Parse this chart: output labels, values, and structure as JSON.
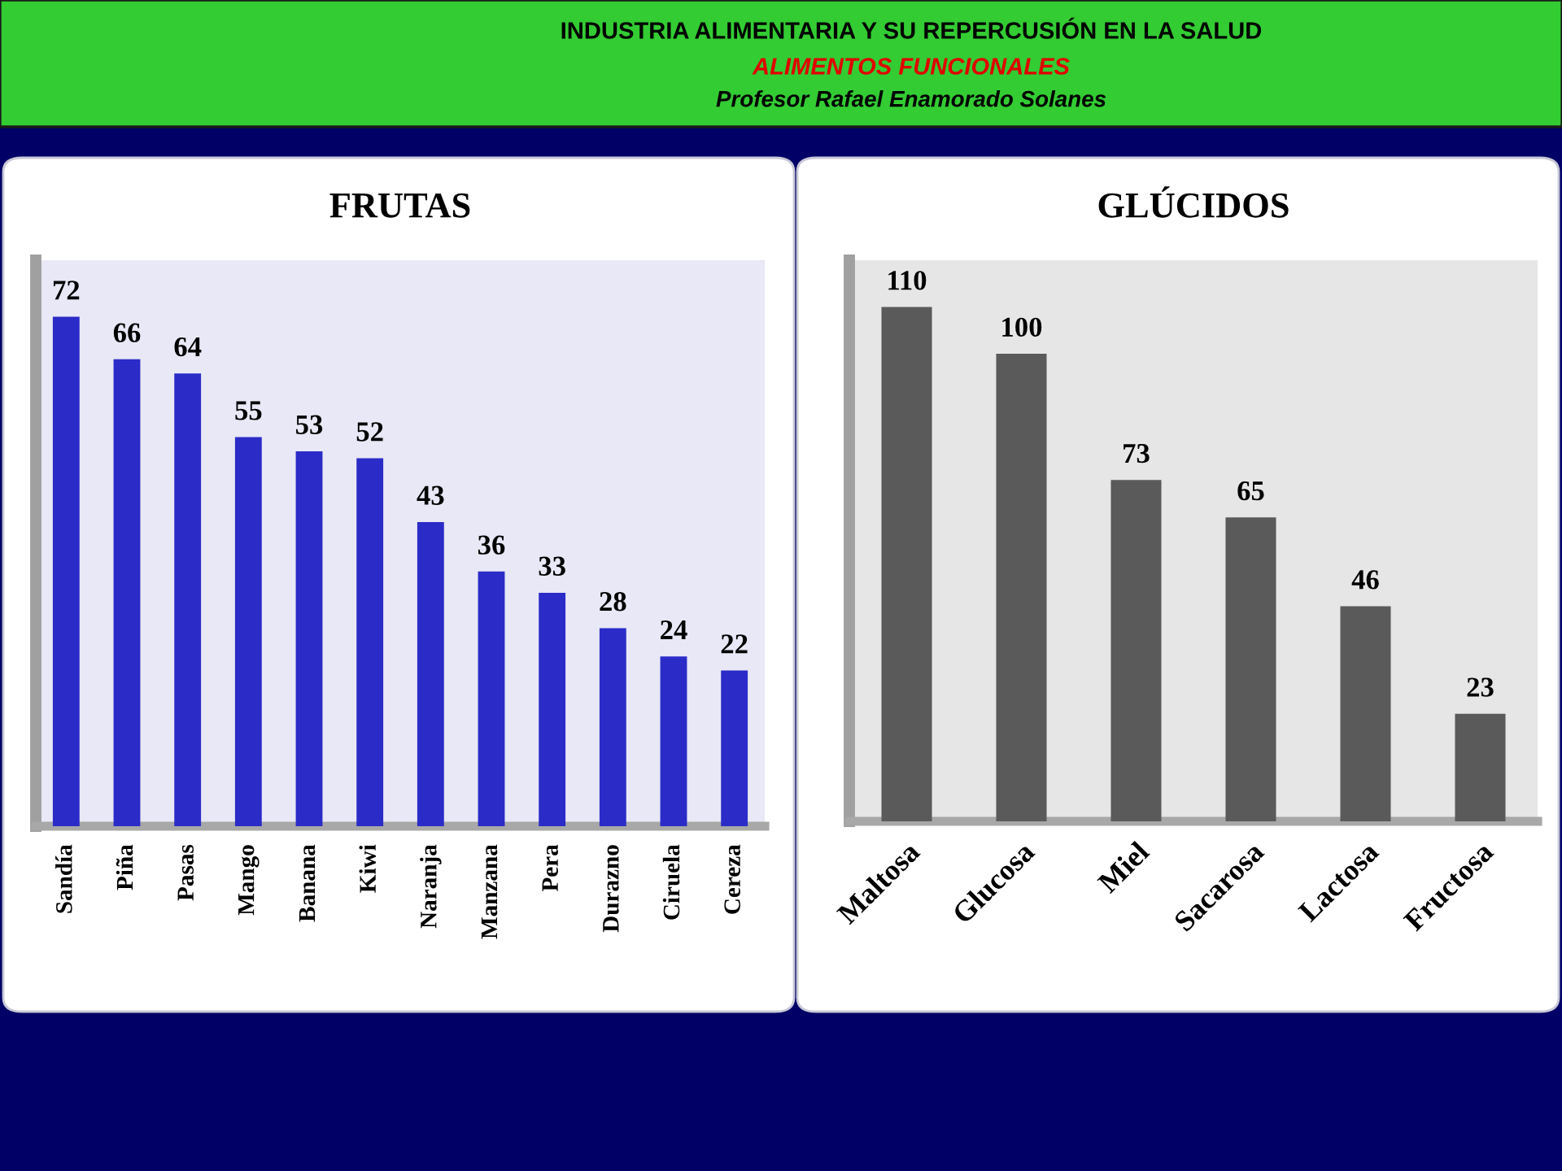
{
  "chart_data": [
    {
      "type": "other",
      "title": "INDUSTRIA ALIMENTARIA Y SU REPERCUSIÓN EN LA SALUD",
      "subtitle": "ALIMENTOS FUNCIONALES",
      "annotations": [
        "Profesor Rafael Enamorado Solanes"
      ]
    },
    {
      "type": "bar",
      "title": "FRUTAS",
      "categories": [
        "Sandía",
        "Piña",
        "Pasas",
        "Mango",
        "Banana",
        "Kiwi",
        "Naranja",
        "Manzana",
        "Pera",
        "Durazno",
        "Ciruela",
        "Cereza"
      ],
      "values": [
        72,
        66,
        64,
        55,
        53,
        52,
        43,
        36,
        33,
        28,
        24,
        22
      ],
      "color": "#2b2bc8",
      "ylim": [
        0,
        80
      ],
      "data_labels": true,
      "tick_labels": "x"
    },
    {
      "type": "bar",
      "title": "GLÚCIDOS",
      "categories": [
        "Maltosa",
        "Glucosa",
        "Miel",
        "Sacarosa",
        "Lactosa",
        "Fructosa"
      ],
      "values": [
        110,
        100,
        73,
        65,
        46,
        23
      ],
      "color": "#5a5a5a",
      "ylim": [
        0,
        120
      ],
      "data_labels": true,
      "tick_labels": "x"
    }
  ]
}
